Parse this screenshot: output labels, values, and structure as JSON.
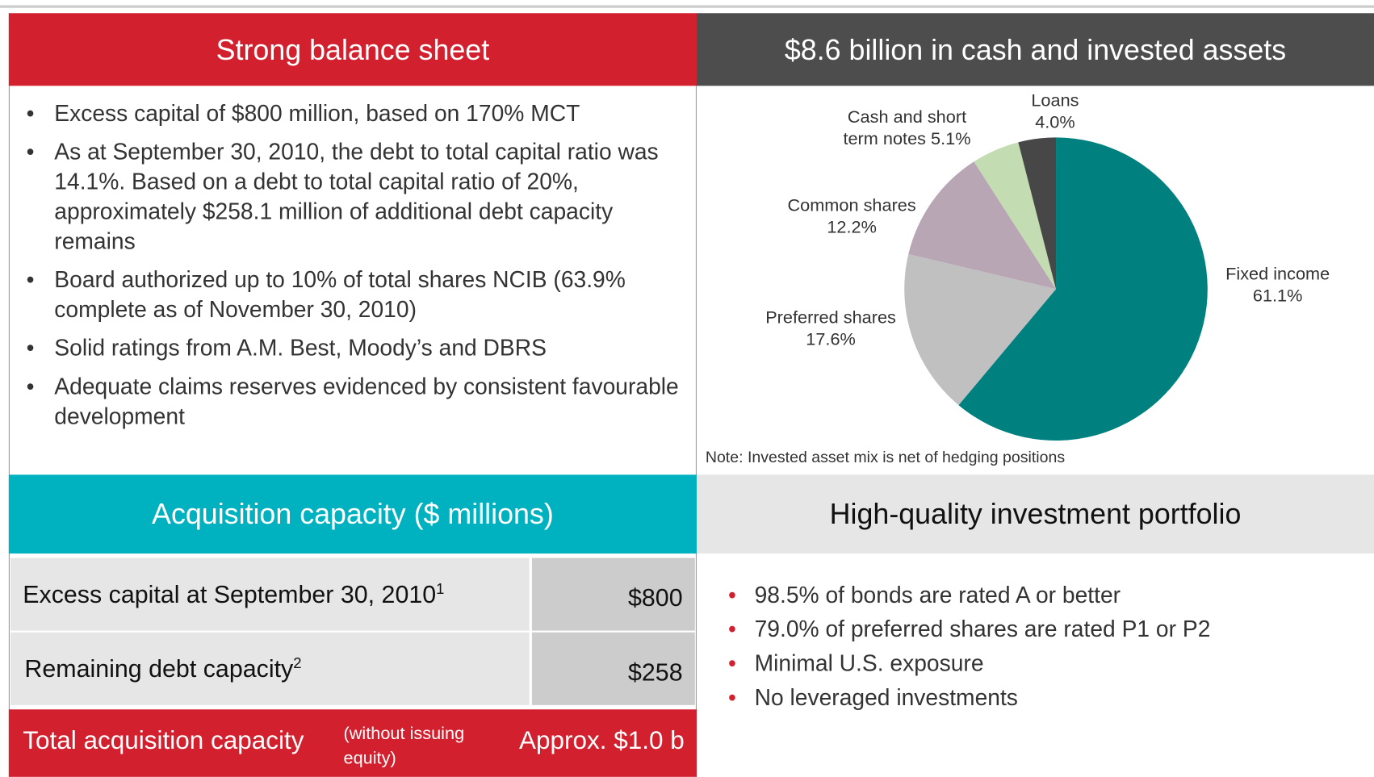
{
  "balance": {
    "title": "Strong balance sheet",
    "bullets": [
      "Excess capital of $800 million, based on 170% MCT",
      "As at September 30, 2010, the debt to total capital ratio was 14.1%. Based on a debt to total capital ratio of 20%, approximately $258.1 million of additional debt capacity remains",
      "Board authorized up to 10% of total shares NCIB (63.9% complete as of November 30, 2010)",
      "Solid ratings from A.M. Best, Moody’s and DBRS",
      "Adequate claims reserves evidenced by consistent favourable development"
    ]
  },
  "acquisition": {
    "title": "Acquisition capacity ($ millions)",
    "rows": [
      {
        "label": "Excess capital at September 30, 2010",
        "note": "1",
        "value": "$800"
      },
      {
        "label": "Remaining debt capacity",
        "note": "2",
        "value": "$258"
      }
    ],
    "total": {
      "label": "Total acquisition capacity",
      "qualifier": "(without issuing equity)",
      "value": "Approx. $1.0 b"
    }
  },
  "chart_data": {
    "type": "pie",
    "title": "$8.6 billion in cash and invested assets",
    "categories": [
      "Fixed income",
      "Preferred shares",
      "Common shares",
      "Cash and short term notes",
      "Loans"
    ],
    "values": [
      61.1,
      17.6,
      12.2,
      5.1,
      4.0
    ],
    "value_labels": [
      "61.1%",
      "17.6%",
      "12.2%",
      "5.1%",
      "4.0%"
    ],
    "colors": [
      "#00807f",
      "#c0c0c0",
      "#b9a6b5",
      "#c3dcb1",
      "#474747"
    ],
    "note": "Note: Invested asset mix is net of hedging positions"
  },
  "portfolio": {
    "title": "High-quality investment portfolio",
    "bullets": [
      "98.5% of bonds are rated A or better",
      "79.0% of preferred shares are rated P1 or P2",
      "Minimal U.S. exposure",
      "No leveraged investments"
    ]
  }
}
